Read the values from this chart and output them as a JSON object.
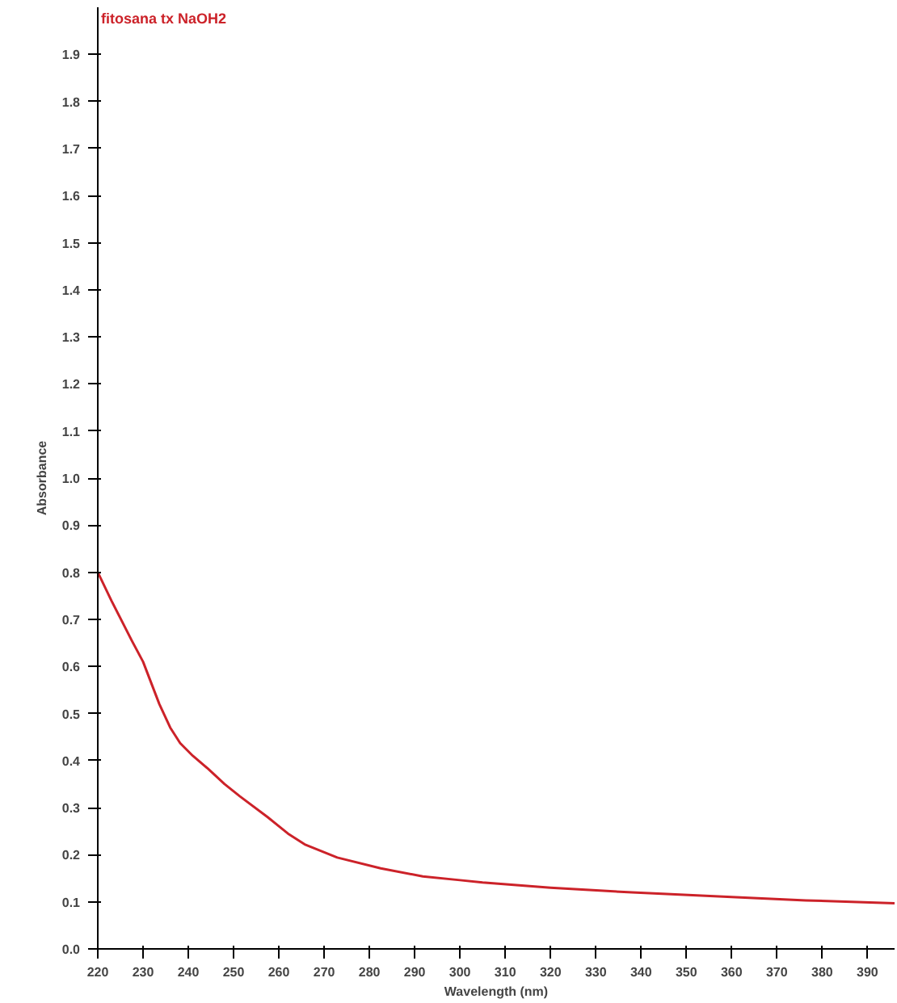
{
  "chart_data": {
    "type": "line",
    "title": "fitosana tx NaOH2",
    "xlabel": "Wavelength (nm)",
    "ylabel": "Absorbance",
    "x": [
      220,
      223,
      227.5,
      230,
      233.6,
      236,
      238.2,
      241,
      244.3,
      248,
      251.4,
      257.5,
      262,
      265.7,
      272.9,
      282.5,
      291.8,
      300,
      305,
      320,
      338,
      360,
      376.4,
      396
    ],
    "series": [
      {
        "color": "#cc2229",
        "values": [
          0.8,
          0.74,
          0.655,
          0.61,
          0.52,
          0.47,
          0.437,
          0.41,
          0.383,
          0.35,
          0.324,
          0.28,
          0.245,
          0.222,
          0.194,
          0.171,
          0.154,
          0.146,
          0.141,
          0.13,
          0.12,
          0.11,
          0.103,
          0.097
        ]
      }
    ],
    "xlim": [
      220,
      396
    ],
    "ylim": [
      0,
      2.0
    ],
    "xticks": [
      220,
      230,
      240,
      250,
      260,
      270,
      280,
      290,
      300,
      310,
      320,
      330,
      340,
      350,
      360,
      370,
      380,
      390
    ],
    "yticks": [
      {
        "value": 0,
        "label": "0.0"
      },
      0.1,
      0.2,
      0.3,
      0.4,
      0.5,
      0.6,
      0.7,
      0.8,
      0.9,
      {
        "value": 1,
        "label": "1.0"
      },
      1.1,
      1.2,
      1.3,
      1.4,
      1.5,
      1.6,
      1.7,
      1.8,
      1.9
    ],
    "grid": false,
    "marker": "none",
    "line_style": "solid"
  }
}
